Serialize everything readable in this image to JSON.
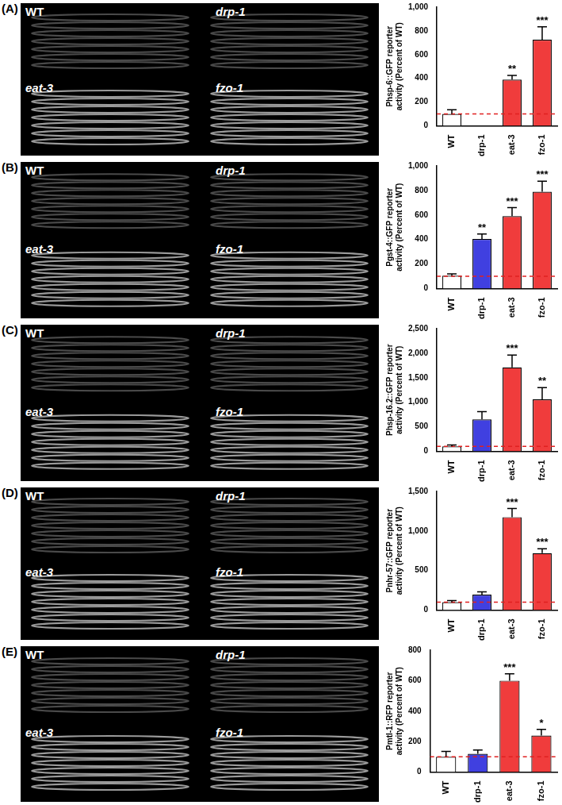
{
  "chart_data": [
    {
      "type": "bar",
      "panel": "(A)",
      "image_labels": [
        "WT",
        "drp-1",
        "eat-3",
        "fzo-1"
      ],
      "y_label": [
        "Phsp-6::GFP reporter",
        "activity (Percent of WT)"
      ],
      "categories": [
        "WT",
        "drp-1",
        "eat-3",
        "fzo-1"
      ],
      "values": [
        100,
        0,
        390,
        725
      ],
      "errors": [
        35,
        null,
        35,
        110
      ],
      "significance": [
        null,
        null,
        "**",
        "***"
      ],
      "colors": [
        "#ffffff",
        "#4040e0",
        "#f03c3c",
        "#f03c3c"
      ],
      "reference_line": 100,
      "ylim": [
        0,
        1000
      ],
      "yticks": [
        0,
        200,
        400,
        600,
        800,
        1000
      ],
      "grid": false
    },
    {
      "type": "bar",
      "panel": "(B)",
      "image_labels": [
        "WT",
        "drp-1",
        "eat-3",
        "fzo-1"
      ],
      "y_label": [
        "Pgst-4::GFP reporter",
        "activity (Percent of WT)"
      ],
      "categories": [
        "WT",
        "drp-1",
        "eat-3",
        "fzo-1"
      ],
      "values": [
        105,
        405,
        590,
        790
      ],
      "errors": [
        15,
        40,
        70,
        85
      ],
      "significance": [
        null,
        "**",
        "***",
        "***"
      ],
      "colors": [
        "#ffffff",
        "#4040e0",
        "#f03c3c",
        "#f03c3c"
      ],
      "reference_line": 100,
      "ylim": [
        0,
        1000
      ],
      "yticks": [
        0,
        200,
        400,
        600,
        800,
        1000
      ],
      "grid": false
    },
    {
      "type": "bar",
      "panel": "(C)",
      "image_labels": [
        "WT",
        "drp-1",
        "eat-3",
        "fzo-1"
      ],
      "y_label": [
        "Phsp-16.2::GFP reporter",
        "activity (Percent of WT)"
      ],
      "categories": [
        "WT",
        "drp-1",
        "eat-3",
        "fzo-1"
      ],
      "values": [
        100,
        650,
        1710,
        1060
      ],
      "errors": [
        30,
        160,
        250,
        240
      ],
      "significance": [
        null,
        null,
        "***",
        "**"
      ],
      "colors": [
        "#ffffff",
        "#4040e0",
        "#f03c3c",
        "#f03c3c"
      ],
      "reference_line": 100,
      "ylim": [
        0,
        2500
      ],
      "yticks": [
        0,
        500,
        1000,
        1500,
        2000,
        2500
      ],
      "grid": false
    },
    {
      "type": "bar",
      "panel": "(D)",
      "image_labels": [
        "WT",
        "drp-1",
        "eat-3",
        "fzo-1"
      ],
      "y_label": [
        "Pnhr-57::GFP reporter",
        "activity (Percent of WT)"
      ],
      "categories": [
        "WT",
        "drp-1",
        "eat-3",
        "fzo-1"
      ],
      "values": [
        100,
        195,
        1175,
        720
      ],
      "errors": [
        20,
        35,
        110,
        55
      ],
      "significance": [
        null,
        null,
        "***",
        "***"
      ],
      "colors": [
        "#ffffff",
        "#4040e0",
        "#f03c3c",
        "#f03c3c"
      ],
      "reference_line": 100,
      "ylim": [
        0,
        1500
      ],
      "yticks": [
        0,
        500,
        1000,
        1500
      ],
      "grid": false
    },
    {
      "type": "bar",
      "panel": "(E)",
      "image_labels": [
        "WT",
        "drp-1",
        "eat-3",
        "fzo-1"
      ],
      "y_label": [
        "Pmtl-1::RFP reporter",
        "activity (Percent of WT)"
      ],
      "categories": [
        "WT",
        "drp-1",
        "eat-3",
        "fzo-1"
      ],
      "values": [
        100,
        120,
        600,
        240
      ],
      "errors": [
        35,
        25,
        45,
        40
      ],
      "significance": [
        null,
        null,
        "***",
        "*"
      ],
      "colors": [
        "#ffffff",
        "#4040e0",
        "#f03c3c",
        "#f03c3c"
      ],
      "reference_line": 100,
      "ylim": [
        0,
        800
      ],
      "yticks": [
        0,
        200,
        400,
        600,
        800
      ],
      "grid": false
    }
  ]
}
